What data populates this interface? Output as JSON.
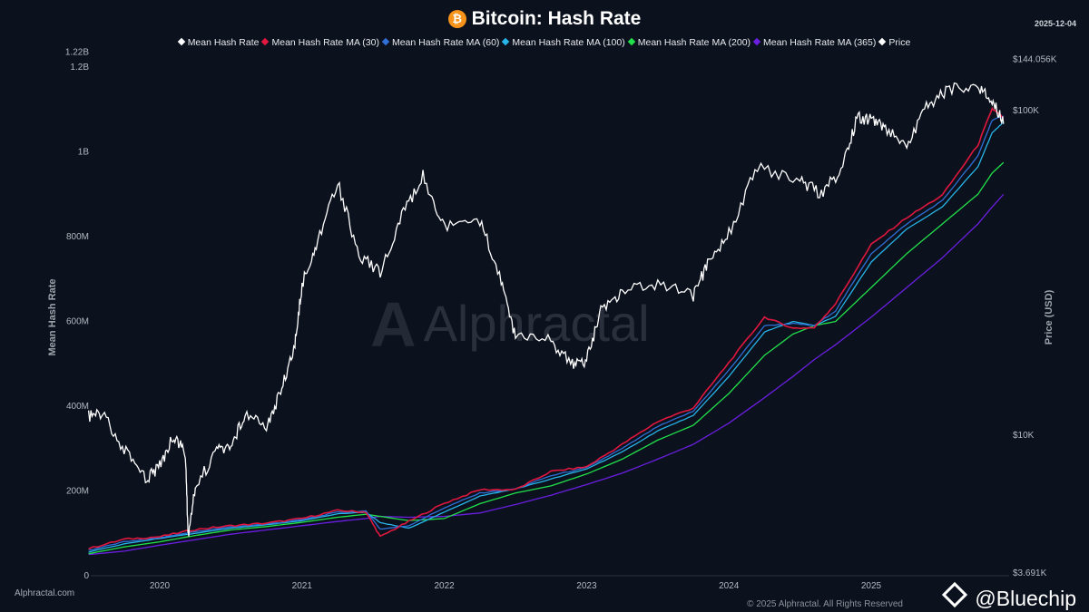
{
  "header": {
    "title": "Bitcoin: Hash Rate",
    "date": "2025-12-04",
    "icon": "bitcoin-icon"
  },
  "watermark": "Alphractal",
  "footer": {
    "site": "Alphractal.com",
    "copyright": "© 2025 Alphractal. All Rights Reserved",
    "handle": "@Bluechip"
  },
  "chart_data": {
    "type": "line",
    "title": "Bitcoin: Hash Rate",
    "ylabel": "Mean Hash Rate",
    "y2label": "Price (USD)",
    "ylim": [
      0,
      1220000000
    ],
    "y2scale": "log",
    "y2lim": [
      3691,
      144056
    ],
    "legend_position": "top-center",
    "grid": false,
    "x_ticks": [
      "2020",
      "2021",
      "2022",
      "2023",
      "2024",
      "2025"
    ],
    "y_ticks": [
      {
        "value": 0,
        "label": "0"
      },
      {
        "value": 200,
        "label": "200M"
      },
      {
        "value": 400,
        "label": "400M"
      },
      {
        "value": 600,
        "label": "600M"
      },
      {
        "value": 800,
        "label": "800M"
      },
      {
        "value": 1000,
        "label": "1B"
      },
      {
        "value": 1200,
        "label": "1.2B"
      },
      {
        "value": 1220,
        "label": "1.22B"
      }
    ],
    "y2_ticks": [
      {
        "value": 3691,
        "label": "$3.691K"
      },
      {
        "value": 10000,
        "label": "$10K"
      },
      {
        "value": 100000,
        "label": "$100K"
      },
      {
        "value": 144056,
        "label": "$144.056K"
      }
    ],
    "x": [
      2019.5,
      2019.75,
      2020,
      2020.25,
      2020.5,
      2020.75,
      2021,
      2021.25,
      2021.45,
      2021.55,
      2021.75,
      2022,
      2022.25,
      2022.5,
      2022.75,
      2023,
      2023.25,
      2023.5,
      2023.75,
      2024,
      2024.25,
      2024.45,
      2024.6,
      2024.75,
      2025,
      2025.25,
      2025.5,
      2025.75,
      2025.85,
      2025.93
    ],
    "series": [
      {
        "name": "Mean Hash Rate",
        "color": "#ffffff",
        "axis": "left",
        "unit": "M",
        "values": [
          66,
          88,
          94,
          110,
          120,
          126,
          138,
          156,
          148,
          90,
          130,
          174,
          205,
          200,
          250,
          260,
          315,
          368,
          400,
          510,
          615,
          580,
          582,
          648,
          790,
          850,
          905,
          1025,
          1110,
          1075
        ],
        "hidden_line": true
      },
      {
        "name": "Mean Hash Rate MA (30)",
        "color": "#e0173f",
        "axis": "left",
        "unit": "M",
        "values": [
          64,
          86,
          92,
          109,
          118,
          124,
          135,
          154,
          150,
          92,
          128,
          171,
          203,
          203,
          246,
          257,
          310,
          364,
          396,
          503,
          610,
          584,
          585,
          642,
          781,
          845,
          898,
          1016,
          1102,
          1080
        ]
      },
      {
        "name": "Mean Hash Rate MA (60)",
        "color": "#2f6fd6",
        "axis": "left",
        "unit": "M",
        "values": [
          60,
          80,
          90,
          104,
          115,
          122,
          132,
          150,
          152,
          110,
          118,
          160,
          195,
          205,
          236,
          255,
          300,
          352,
          388,
          485,
          590,
          595,
          590,
          625,
          760,
          830,
          885,
          990,
          1075,
          1085
        ]
      },
      {
        "name": "Mean Hash Rate MA (100)",
        "color": "#27b4e8",
        "axis": "left",
        "unit": "M",
        "values": [
          56,
          75,
          88,
          100,
          112,
          120,
          130,
          146,
          150,
          125,
          112,
          150,
          188,
          205,
          228,
          252,
          292,
          342,
          378,
          470,
          575,
          600,
          590,
          612,
          740,
          818,
          870,
          965,
          1045,
          1070
        ]
      },
      {
        "name": "Mean Hash Rate MA (200)",
        "color": "#22e04a",
        "axis": "left",
        "unit": "M",
        "values": [
          52,
          68,
          80,
          95,
          108,
          116,
          126,
          138,
          145,
          140,
          130,
          135,
          170,
          195,
          212,
          240,
          275,
          320,
          355,
          430,
          520,
          570,
          590,
          600,
          680,
          760,
          830,
          900,
          950,
          975
        ]
      },
      {
        "name": "Mean Hash Rate MA (365)",
        "color": "#6a1fe0",
        "axis": "left",
        "unit": "M",
        "values": [
          50,
          58,
          72,
          85,
          98,
          108,
          118,
          128,
          135,
          140,
          138,
          140,
          148,
          168,
          190,
          215,
          242,
          275,
          310,
          360,
          420,
          470,
          510,
          545,
          610,
          680,
          750,
          830,
          870,
          900
        ]
      },
      {
        "name": "Price",
        "color": "#ffffff",
        "axis": "right",
        "unit": "USD",
        "x": [
          2019.5,
          2019.6,
          2019.75,
          2019.9,
          2020.0,
          2020.1,
          2020.18,
          2020.2,
          2020.25,
          2020.4,
          2020.5,
          2020.6,
          2020.75,
          2020.85,
          2020.95,
          2021.0,
          2021.1,
          2021.25,
          2021.4,
          2021.55,
          2021.7,
          2021.85,
          2022.0,
          2022.25,
          2022.4,
          2022.5,
          2022.75,
          2022.9,
          2023.0,
          2023.1,
          2023.25,
          2023.5,
          2023.75,
          2023.85,
          2024.0,
          2024.2,
          2024.5,
          2024.65,
          2024.8,
          2024.9,
          2025.0,
          2025.1,
          2025.25,
          2025.4,
          2025.55,
          2025.75,
          2025.85,
          2025.93
        ],
        "values": [
          11400,
          11800,
          9000,
          7300,
          8000,
          10000,
          8800,
          4900,
          6900,
          9000,
          9200,
          11700,
          10700,
          13500,
          19000,
          29000,
          39000,
          60000,
          36000,
          32000,
          47000,
          63000,
          44000,
          46000,
          30000,
          20000,
          19500,
          16500,
          17000,
          24000,
          28000,
          29500,
          27000,
          33500,
          42000,
          67000,
          61000,
          55000,
          67000,
          95000,
          94000,
          89000,
          78000,
          105000,
          116000,
          120000,
          107000,
          91000
        ]
      }
    ]
  }
}
